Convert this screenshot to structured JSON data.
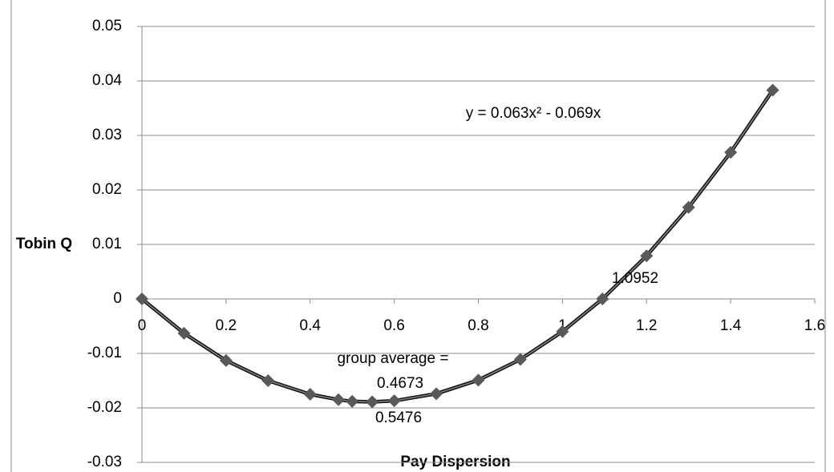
{
  "chart_data": {
    "type": "scatter",
    "x_label": "Pay Dispersion",
    "y_label": "Tobin Q",
    "x": [
      0,
      0.1,
      0.2,
      0.3,
      0.4,
      0.4673,
      0.5,
      0.5476,
      0.6,
      0.7,
      0.8,
      0.9,
      1.0,
      1.0952,
      1.2,
      1.3,
      1.4,
      1.5
    ],
    "series": [
      {
        "color": "#595959",
        "values": [
          0,
          -0.0063,
          -0.0113,
          -0.015,
          -0.0175,
          -0.0185,
          -0.0188,
          -0.0189,
          -0.0187,
          -0.0174,
          -0.0149,
          -0.0111,
          -0.006,
          0.0,
          0.0079,
          0.0168,
          0.0269,
          0.0383
        ]
      }
    ],
    "trendline": true,
    "annotations": [
      "y = 0.063x² - 0.069x",
      "1.0952",
      "group average =",
      "0.4673",
      "0.5476"
    ],
    "xlim": [
      0,
      1.6
    ],
    "xticks": [
      0,
      0.2,
      0.4,
      0.6,
      0.8,
      1,
      1.2,
      1.4,
      1.6
    ],
    "ylim": [
      -0.03,
      0.05
    ],
    "yticks": [
      -0.03,
      -0.02,
      -0.01,
      0,
      0.01,
      0.02,
      0.03,
      0.04,
      0.05
    ],
    "grid": true
  }
}
